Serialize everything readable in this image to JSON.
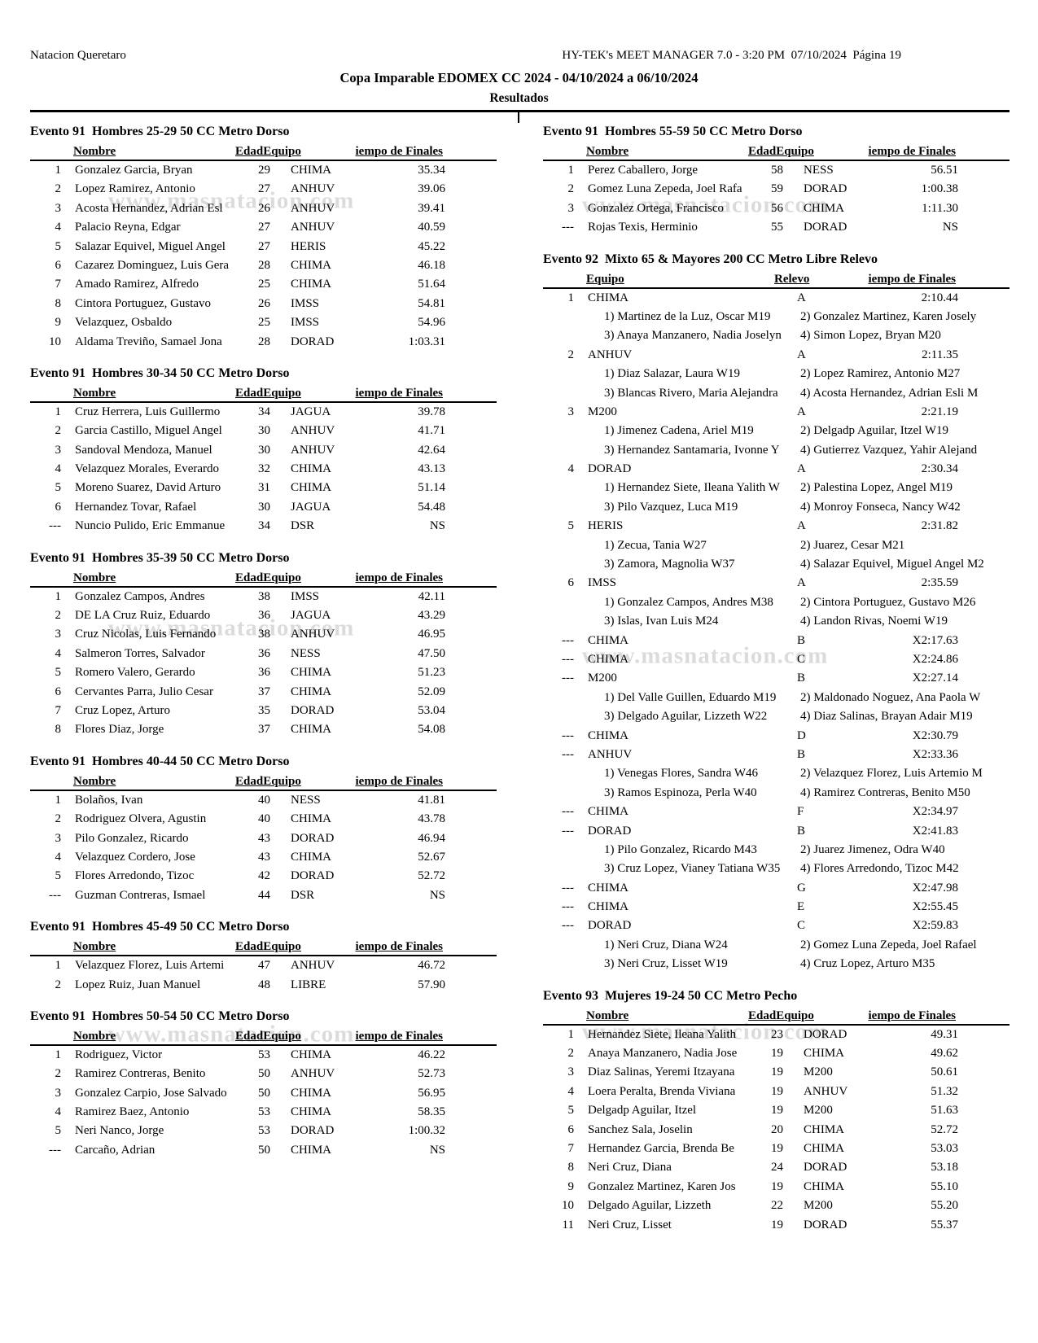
{
  "header": {
    "club": "Natacion Queretaro",
    "software": "HY-TEK's MEET MANAGER 7.0 - 3:20 PM  07/10/2024  Página 19",
    "title": "Copa Imparable EDOMEX CC 2024 - 04/10/2024 a 06/10/2024",
    "subtitle": "Resultados"
  },
  "watermark": {
    "text": "www.masnatacion.com"
  },
  "table_headers": {
    "ind": [
      "Nombre",
      "EdadEquipo",
      "iempo de Finales"
    ],
    "relay": [
      "Equipo",
      "Relevo",
      "iempo de Finales"
    ]
  },
  "columns": {
    "left": [
      {
        "title": "Evento 91  Hombres 25-29 50 CC Metro Dorso",
        "kind": "ind",
        "rows": [
          {
            "place": "1",
            "name": "Gonzalez Garcia, Bryan",
            "age": "29",
            "team": "CHIMA",
            "time": "35.34"
          },
          {
            "place": "2",
            "name": "Lopez Ramirez, Antonio",
            "age": "27",
            "team": "ANHUV",
            "time": "39.06"
          },
          {
            "place": "3",
            "name": "Acosta Hernandez, Adrian Esl",
            "age": "26",
            "team": "ANHUV",
            "time": "39.41"
          },
          {
            "place": "4",
            "name": "Palacio Reyna, Edgar",
            "age": "27",
            "team": "ANHUV",
            "time": "40.59"
          },
          {
            "place": "5",
            "name": "Salazar Equivel, Miguel Angel",
            "age": "27",
            "team": "HERIS",
            "time": "45.22"
          },
          {
            "place": "6",
            "name": "Cazarez Dominguez, Luis Gera",
            "age": "28",
            "team": "CHIMA",
            "time": "46.18"
          },
          {
            "place": "7",
            "name": "Amado Ramirez, Alfredo",
            "age": "25",
            "team": "CHIMA",
            "time": "51.64"
          },
          {
            "place": "8",
            "name": "Cintora Portuguez, Gustavo",
            "age": "26",
            "team": "IMSS",
            "time": "54.81"
          },
          {
            "place": "9",
            "name": "Velazquez, Osbaldo",
            "age": "25",
            "team": "IMSS",
            "time": "54.96"
          },
          {
            "place": "10",
            "name": "Aldama Treviño, Samael Jona",
            "age": "28",
            "team": "DORAD",
            "time": "1:03.31"
          }
        ]
      },
      {
        "title": "Evento 91  Hombres 30-34 50 CC Metro Dorso",
        "kind": "ind",
        "rows": [
          {
            "place": "1",
            "name": "Cruz Herrera, Luis Guillermo",
            "age": "34",
            "team": "JAGUA",
            "time": "39.78"
          },
          {
            "place": "2",
            "name": "Garcia Castillo, Miguel Angel",
            "age": "30",
            "team": "ANHUV",
            "time": "41.71"
          },
          {
            "place": "3",
            "name": "Sandoval Mendoza, Manuel",
            "age": "30",
            "team": "ANHUV",
            "time": "42.64"
          },
          {
            "place": "4",
            "name": "Velazquez Morales, Everardo",
            "age": "32",
            "team": "CHIMA",
            "time": "43.13"
          },
          {
            "place": "5",
            "name": "Moreno Suarez, David Arturo",
            "age": "31",
            "team": "CHIMA",
            "time": "51.14"
          },
          {
            "place": "6",
            "name": "Hernandez Tovar, Rafael",
            "age": "30",
            "team": "JAGUA",
            "time": "54.48"
          },
          {
            "place": "---",
            "name": "Nuncio Pulido, Eric Emmanue",
            "age": "34",
            "team": "DSR",
            "time": "NS"
          }
        ]
      },
      {
        "title": "Evento 91  Hombres 35-39 50 CC Metro Dorso",
        "kind": "ind",
        "rows": [
          {
            "place": "1",
            "name": "Gonzalez Campos, Andres",
            "age": "38",
            "team": "IMSS",
            "time": "42.11"
          },
          {
            "place": "2",
            "name": "DE LA Cruz Ruiz, Eduardo",
            "age": "36",
            "team": "JAGUA",
            "time": "43.29"
          },
          {
            "place": "3",
            "name": "Cruz Nicolas, Luis Fernando",
            "age": "38",
            "team": "ANHUV",
            "time": "46.95"
          },
          {
            "place": "4",
            "name": "Salmeron Torres, Salvador",
            "age": "36",
            "team": "NESS",
            "time": "47.50"
          },
          {
            "place": "5",
            "name": "Romero Valero, Gerardo",
            "age": "36",
            "team": "CHIMA",
            "time": "51.23"
          },
          {
            "place": "6",
            "name": "Cervantes Parra, Julio Cesar",
            "age": "37",
            "team": "CHIMA",
            "time": "52.09"
          },
          {
            "place": "7",
            "name": "Cruz Lopez, Arturo",
            "age": "35",
            "team": "DORAD",
            "time": "53.04"
          },
          {
            "place": "8",
            "name": "Flores Diaz, Jorge",
            "age": "37",
            "team": "CHIMA",
            "time": "54.08"
          }
        ]
      },
      {
        "title": "Evento 91  Hombres 40-44 50 CC Metro Dorso",
        "kind": "ind",
        "rows": [
          {
            "place": "1",
            "name": "Bolaños, Ivan",
            "age": "40",
            "team": "NESS",
            "time": "41.81"
          },
          {
            "place": "2",
            "name": "Rodriguez Olvera, Agustin",
            "age": "40",
            "team": "CHIMA",
            "time": "43.78"
          },
          {
            "place": "3",
            "name": "Pilo Gonzalez, Ricardo",
            "age": "43",
            "team": "DORAD",
            "time": "46.94"
          },
          {
            "place": "4",
            "name": "Velazquez Cordero, Jose",
            "age": "43",
            "team": "CHIMA",
            "time": "52.67"
          },
          {
            "place": "5",
            "name": "Flores Arredondo, Tizoc",
            "age": "42",
            "team": "DORAD",
            "time": "52.72"
          },
          {
            "place": "---",
            "name": "Guzman Contreras, Ismael",
            "age": "44",
            "team": "DSR",
            "time": "NS"
          }
        ]
      },
      {
        "title": "Evento 91  Hombres 45-49 50 CC Metro Dorso",
        "kind": "ind",
        "rows": [
          {
            "place": "1",
            "name": "Velazquez Florez, Luis Artemi",
            "age": "47",
            "team": "ANHUV",
            "time": "46.72"
          },
          {
            "place": "2",
            "name": "Lopez Ruiz, Juan Manuel",
            "age": "48",
            "team": "LIBRE",
            "time": "57.90"
          }
        ]
      },
      {
        "title": "Evento 91  Hombres 50-54 50 CC Metro Dorso",
        "kind": "ind",
        "rows": [
          {
            "place": "1",
            "name": "Rodriguez, Victor",
            "age": "53",
            "team": "CHIMA",
            "time": "46.22"
          },
          {
            "place": "2",
            "name": "Ramirez Contreras, Benito",
            "age": "50",
            "team": "ANHUV",
            "time": "52.73"
          },
          {
            "place": "3",
            "name": "Gonzalez Carpio, Jose Salvado",
            "age": "50",
            "team": "CHIMA",
            "time": "56.95"
          },
          {
            "place": "4",
            "name": "Ramirez Baez, Antonio",
            "age": "53",
            "team": "CHIMA",
            "time": "58.35"
          },
          {
            "place": "5",
            "name": "Neri Nanco, Jorge",
            "age": "53",
            "team": "DORAD",
            "time": "1:00.32"
          },
          {
            "place": "---",
            "name": "Carcaño, Adrian",
            "age": "50",
            "team": "CHIMA",
            "time": "NS"
          }
        ]
      }
    ],
    "right": [
      {
        "title": "Evento 91  Hombres 55-59 50 CC Metro Dorso",
        "kind": "ind",
        "rows": [
          {
            "place": "1",
            "name": "Perez Caballero, Jorge",
            "age": "58",
            "team": "NESS",
            "time": "56.51"
          },
          {
            "place": "2",
            "name": "Gomez Luna Zepeda, Joel Rafa",
            "age": "59",
            "team": "DORAD",
            "time": "1:00.38"
          },
          {
            "place": "3",
            "name": "Gonzalez Ortega, Francisco",
            "age": "56",
            "team": "CHIMA",
            "time": "1:11.30"
          },
          {
            "place": "---",
            "name": "Rojas Texis, Herminio",
            "age": "55",
            "team": "DORAD",
            "time": "NS"
          }
        ]
      },
      {
        "title": "Evento 92  Mixto 65 & Mayores 200 CC Metro Libre Relevo",
        "kind": "relay",
        "rows": [
          {
            "place": "1",
            "team": "CHIMA",
            "relay": "A",
            "time": "2:10.44",
            "swimmers": [
              [
                "1) Martinez de la Luz, Oscar M19",
                "2) Gonzalez Martinez, Karen Josely"
              ],
              [
                "3) Anaya Manzanero, Nadia Joselyn",
                "4) Simon Lopez, Bryan M20"
              ]
            ]
          },
          {
            "place": "2",
            "team": "ANHUV",
            "relay": "A",
            "time": "2:11.35",
            "swimmers": [
              [
                "1) Diaz Salazar, Laura W19",
                "2) Lopez Ramirez, Antonio M27"
              ],
              [
                "3) Blancas Rivero, Maria Alejandra",
                "4) Acosta Hernandez, Adrian Esli M"
              ]
            ]
          },
          {
            "place": "3",
            "team": "M200",
            "relay": "A",
            "time": "2:21.19",
            "swimmers": [
              [
                "1) Jimenez Cadena, Ariel M19",
                "2) Delgadp Aguilar, Itzel W19"
              ],
              [
                "3) Hernandez Santamaria, Ivonne Y",
                "4) Gutierrez Vazquez, Yahir Alejand"
              ]
            ]
          },
          {
            "place": "4",
            "team": "DORAD",
            "relay": "A",
            "time": "2:30.34",
            "swimmers": [
              [
                "1) Hernandez Siete, Ileana Yalith W",
                "2) Palestina Lopez, Angel M19"
              ],
              [
                "3) Pilo Vazquez, Luca M19",
                "4) Monroy Fonseca, Nancy W42"
              ]
            ]
          },
          {
            "place": "5",
            "team": "HERIS",
            "relay": "A",
            "time": "2:31.82",
            "swimmers": [
              [
                "1) Zecua, Tania W27",
                "2) Juarez, Cesar M21"
              ],
              [
                "3) Zamora, Magnolia W37",
                "4) Salazar Equivel, Miguel Angel M2"
              ]
            ]
          },
          {
            "place": "6",
            "team": "IMSS",
            "relay": "A",
            "time": "2:35.59",
            "swimmers": [
              [
                "1) Gonzalez Campos, Andres M38",
                "2) Cintora Portuguez, Gustavo M26"
              ],
              [
                "3) Islas, Ivan Luis M24",
                "4) Landon Rivas, Noemi W19"
              ]
            ]
          },
          {
            "place": "---",
            "team": "CHIMA",
            "relay": "B",
            "time": "X2:17.63"
          },
          {
            "place": "---",
            "team": "CHIMA",
            "relay": "C",
            "time": "X2:24.86"
          },
          {
            "place": "---",
            "team": "M200",
            "relay": "B",
            "time": "X2:27.14",
            "swimmers": [
              [
                "1) Del Valle Guillen, Eduardo M19",
                "2) Maldonado Noguez, Ana Paola W"
              ],
              [
                "3) Delgado Aguilar, Lizzeth W22",
                "4) Diaz Salinas, Brayan Adair M19"
              ]
            ]
          },
          {
            "place": "---",
            "team": "CHIMA",
            "relay": "D",
            "time": "X2:30.79"
          },
          {
            "place": "---",
            "team": "ANHUV",
            "relay": "B",
            "time": "X2:33.36",
            "swimmers": [
              [
                "1) Venegas Flores, Sandra W46",
                "2) Velazquez Florez, Luis Artemio M"
              ],
              [
                "3) Ramos Espinoza, Perla W40",
                "4) Ramirez Contreras, Benito M50"
              ]
            ]
          },
          {
            "place": "---",
            "team": "CHIMA",
            "relay": "F",
            "time": "X2:34.97"
          },
          {
            "place": "---",
            "team": "DORAD",
            "relay": "B",
            "time": "X2:41.83",
            "swimmers": [
              [
                "1) Pilo Gonzalez, Ricardo M43",
                "2) Juarez Jimenez, Odra W40"
              ],
              [
                "3) Cruz Lopez, Vianey Tatiana W35",
                "4) Flores Arredondo, Tizoc M42"
              ]
            ]
          },
          {
            "place": "---",
            "team": "CHIMA",
            "relay": "G",
            "time": "X2:47.98"
          },
          {
            "place": "---",
            "team": "CHIMA",
            "relay": "E",
            "time": "X2:55.45"
          },
          {
            "place": "---",
            "team": "DORAD",
            "relay": "C",
            "time": "X2:59.83",
            "swimmers": [
              [
                "1) Neri Cruz, Diana W24",
                "2) Gomez Luna Zepeda, Joel Rafael"
              ],
              [
                "3) Neri Cruz, Lisset W19",
                "4) Cruz Lopez, Arturo M35"
              ]
            ]
          }
        ]
      },
      {
        "title": "Evento 93  Mujeres 19-24 50 CC Metro Pecho",
        "kind": "ind",
        "rows": [
          {
            "place": "1",
            "name": "Hernandez Siete, Ileana Yalith",
            "age": "23",
            "team": "DORAD",
            "time": "49.31"
          },
          {
            "place": "2",
            "name": "Anaya Manzanero, Nadia Jose",
            "age": "19",
            "team": "CHIMA",
            "time": "49.62"
          },
          {
            "place": "3",
            "name": "Diaz Salinas, Yeremi Itzayana",
            "age": "19",
            "team": "M200",
            "time": "50.61"
          },
          {
            "place": "4",
            "name": "Loera Peralta, Brenda Viviana",
            "age": "19",
            "team": "ANHUV",
            "time": "51.32"
          },
          {
            "place": "5",
            "name": "Delgadp Aguilar, Itzel",
            "age": "19",
            "team": "M200",
            "time": "51.63"
          },
          {
            "place": "6",
            "name": "Sanchez Sala, Joselin",
            "age": "20",
            "team": "CHIMA",
            "time": "52.72"
          },
          {
            "place": "7",
            "name": "Hernandez Garcia, Brenda Be",
            "age": "19",
            "team": "CHIMA",
            "time": "53.03"
          },
          {
            "place": "8",
            "name": "Neri Cruz, Diana",
            "age": "24",
            "team": "DORAD",
            "time": "53.18"
          },
          {
            "place": "9",
            "name": "Gonzalez Martinez, Karen Jos",
            "age": "19",
            "team": "CHIMA",
            "time": "55.10"
          },
          {
            "place": "10",
            "name": "Delgado Aguilar, Lizzeth",
            "age": "22",
            "team": "M200",
            "time": "55.20"
          },
          {
            "place": "11",
            "name": "Neri Cruz, Lisset",
            "age": "19",
            "team": "DORAD",
            "time": "55.37"
          }
        ]
      }
    ]
  }
}
